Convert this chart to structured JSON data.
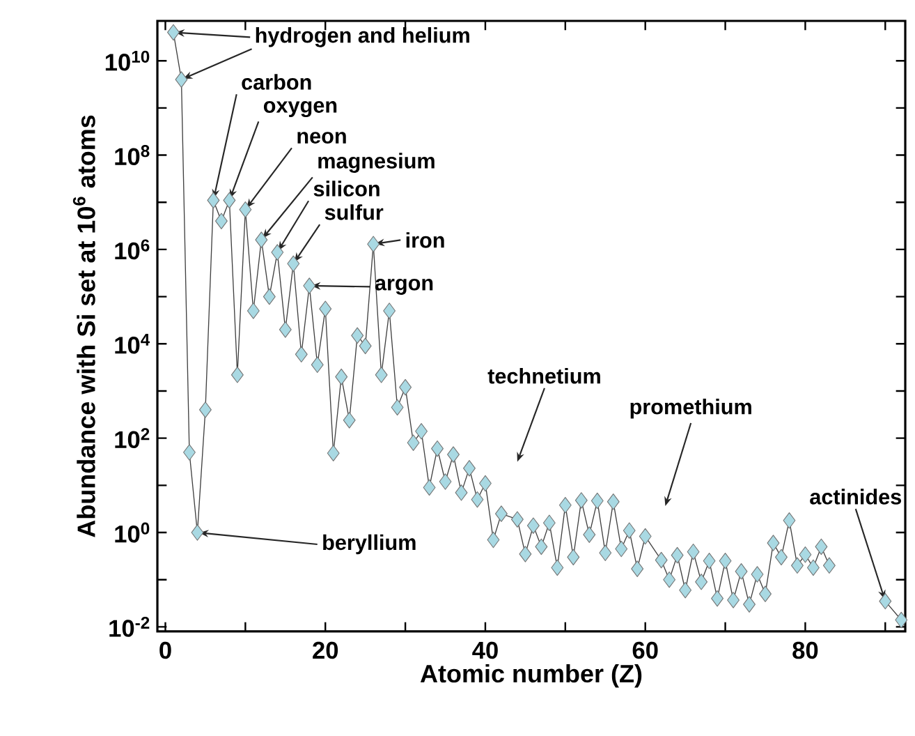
{
  "chart_data": {
    "type": "line",
    "marker": "diamond",
    "log": "y",
    "xlabel": "Atomic number (Z)",
    "ylabel": "Abundance with Si set at 10$^{6}$ atoms",
    "x": [
      1,
      2,
      3,
      4,
      5,
      6,
      7,
      8,
      9,
      10,
      11,
      12,
      13,
      14,
      15,
      16,
      17,
      18,
      19,
      20,
      21,
      22,
      23,
      24,
      25,
      26,
      27,
      28,
      29,
      30,
      31,
      32,
      33,
      34,
      35,
      36,
      37,
      38,
      39,
      40,
      41,
      42,
      44,
      45,
      46,
      47,
      48,
      49,
      50,
      51,
      52,
      53,
      54,
      55,
      56,
      57,
      58,
      59,
      60,
      62,
      63,
      64,
      65,
      66,
      67,
      68,
      69,
      70,
      71,
      72,
      73,
      74,
      75,
      76,
      77,
      78,
      79,
      80,
      81,
      82,
      83,
      84,
      90,
      92
    ],
    "series": [
      {
        "color": "#a9d9e3",
        "values": [
          40000000000,
          4000000000,
          50,
          1,
          400,
          11000000,
          4000000,
          11000000,
          2200,
          7000000,
          50000,
          1600000,
          100000,
          870000,
          20000,
          500000,
          6000,
          170000,
          3600,
          55000,
          48,
          2000,
          240,
          15000,
          9000,
          1300000,
          2200,
          50000,
          450,
          1200,
          80,
          140,
          9,
          60,
          12,
          45,
          7,
          23,
          5,
          11,
          0.7,
          2.5,
          1.9,
          0.35,
          1.4,
          0.5,
          1.6,
          0.18,
          3.8,
          0.3,
          4.8,
          0.9,
          4.7,
          0.37,
          4.5,
          0.45,
          1.1,
          0.17,
          0.83,
          0.26,
          0.1,
          0.33,
          0.06,
          0.39,
          0.09,
          0.25,
          0.04,
          0.25,
          0.037,
          0.15,
          0.03,
          0.13,
          0.05,
          0.6,
          0.3,
          1.8,
          0.2,
          0.34,
          0.18,
          0.5,
          0.2,
          null,
          0.035,
          0.014
        ]
      }
    ],
    "xlim": [
      -1,
      92.5
    ],
    "ylim": [
      0.008,
      70000000000
    ],
    "xticks": [
      0,
      {
        "value": 10,
        "label": null
      },
      20,
      {
        "value": 30,
        "label": null
      },
      40,
      {
        "value": 50,
        "label": null
      },
      60,
      {
        "value": 70,
        "label": null
      },
      80,
      {
        "value": 90,
        "label": null
      }
    ],
    "yticks": [
      {
        "value": 0.01,
        "label": "10$^{-2}$"
      },
      {
        "value": 0.1,
        "label": null
      },
      {
        "value": 1,
        "label": "10$^{0}$"
      },
      {
        "value": 10,
        "label": null
      },
      {
        "value": 100,
        "label": "10$^{2}$"
      },
      {
        "value": 1000,
        "label": null
      },
      {
        "value": 10000,
        "label": "10$^{4}$"
      },
      {
        "value": 100000,
        "label": null
      },
      {
        "value": 1000000,
        "label": "10$^{6}$"
      },
      {
        "value": 10000000,
        "label": null
      },
      {
        "value": 100000000,
        "label": "10$^{8}$"
      },
      {
        "value": 1000000000,
        "label": null
      },
      {
        "value": 10000000000,
        "label": "10$^{10}$"
      }
    ],
    "annotations": [
      {
        "text": "hydrogen and helium",
        "x": 1,
        "y": 40000000000
      },
      {
        "text": "carbon",
        "x": 6,
        "y": 11000000
      },
      {
        "text": "oxygen",
        "x": 8,
        "y": 11000000
      },
      {
        "text": "neon",
        "x": 10,
        "y": 7000000
      },
      {
        "text": "magnesium",
        "x": 12,
        "y": 1600000
      },
      {
        "text": "silicon",
        "x": 14,
        "y": 870000
      },
      {
        "text": "sulfur",
        "x": 16,
        "y": 500000
      },
      {
        "text": "iron",
        "x": 26,
        "y": 1300000
      },
      {
        "text": "argon",
        "x": 18,
        "y": 170000
      },
      {
        "text": "beryllium",
        "x": 4,
        "y": 1
      },
      "technetium",
      "promethium",
      {
        "text": "actinides",
        "x": 90,
        "y": 0.035
      }
    ]
  }
}
